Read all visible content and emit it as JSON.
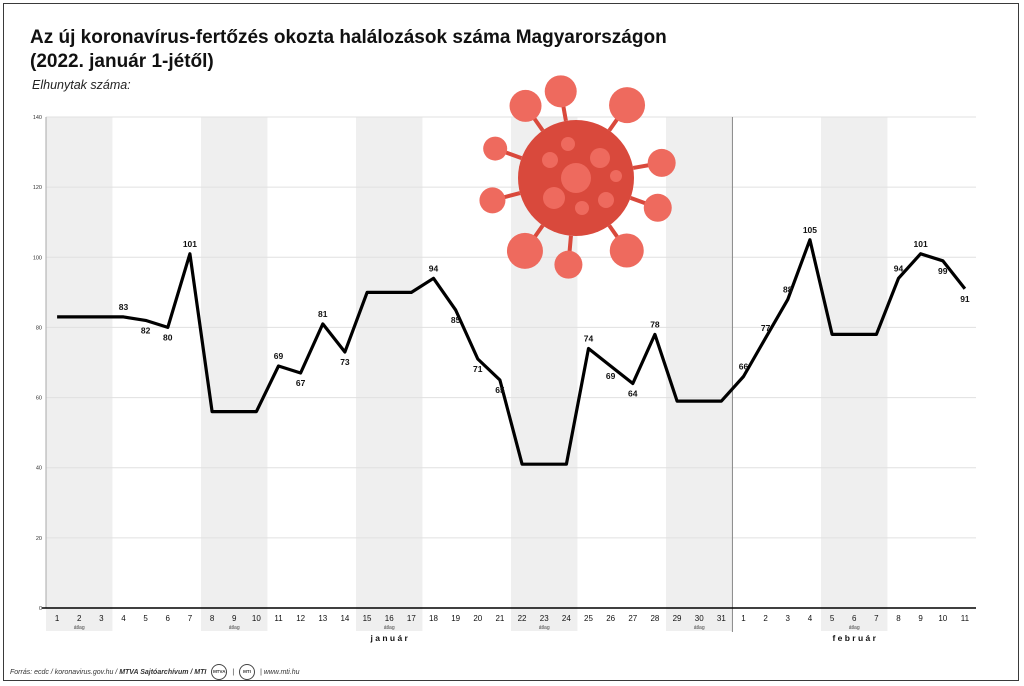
{
  "title_line1": "Az új koronavírus-fertőzés okozta halálozások száma Magyarországon",
  "title_line2": "(2022. január 1-jétől)",
  "ylabel": "Elhunytak száma:",
  "footer": {
    "source": "Forrás: ecdc / koronavirus.gov.hu /",
    "agency": "MTVA Sajtóarchívum / MTI",
    "logo1": "MTVA",
    "logo2": "MTI",
    "url": "www.mti.hu"
  },
  "colors": {
    "line": "#000000",
    "band": "#efefef",
    "grid": "#e0e0e0",
    "virus": "#d9493c",
    "virus_light": "#ee6a5e"
  },
  "chart_data": {
    "type": "line",
    "ylim": [
      0,
      140
    ],
    "yticks": [
      0,
      20,
      40,
      60,
      80,
      100,
      120,
      140
    ],
    "x": [
      "1",
      "2",
      "3",
      "4",
      "5",
      "6",
      "7",
      "8",
      "9",
      "10",
      "11",
      "12",
      "13",
      "14",
      "15",
      "16",
      "17",
      "18",
      "19",
      "20",
      "21",
      "22",
      "23",
      "24",
      "25",
      "26",
      "27",
      "28",
      "29",
      "30",
      "31",
      "1",
      "2",
      "3",
      "4",
      "5",
      "6",
      "7",
      "8",
      "9",
      "10",
      "11"
    ],
    "series": [
      {
        "values": [
          83,
          83,
          83,
          83,
          82,
          80,
          101,
          56,
          56,
          56,
          69,
          67,
          81,
          73,
          90,
          90,
          90,
          94,
          85,
          71,
          65,
          41,
          41,
          41,
          74,
          69,
          64,
          78,
          59,
          59,
          59,
          66,
          77,
          88,
          105,
          78,
          78,
          78,
          94,
          101,
          99,
          91
        ]
      }
    ],
    "data_labels": [
      {
        "i": 3,
        "text": "83"
      },
      {
        "i": 4,
        "text": "82"
      },
      {
        "i": 5,
        "text": "80"
      },
      {
        "i": 6,
        "text": "101"
      },
      {
        "i": 10,
        "text": "69"
      },
      {
        "i": 11,
        "text": "67"
      },
      {
        "i": 12,
        "text": "81"
      },
      {
        "i": 13,
        "text": "73"
      },
      {
        "i": 17,
        "text": "94"
      },
      {
        "i": 18,
        "text": "85"
      },
      {
        "i": 19,
        "text": "71"
      },
      {
        "i": 20,
        "text": "65"
      },
      {
        "i": 24,
        "text": "74"
      },
      {
        "i": 25,
        "text": "69"
      },
      {
        "i": 26,
        "text": "64"
      },
      {
        "i": 27,
        "text": "78"
      },
      {
        "i": 31,
        "text": "66"
      },
      {
        "i": 32,
        "text": "77"
      },
      {
        "i": 33,
        "text": "88"
      },
      {
        "i": 34,
        "text": "105"
      },
      {
        "i": 38,
        "text": "94"
      },
      {
        "i": 39,
        "text": "101"
      },
      {
        "i": 40,
        "text": "99"
      },
      {
        "i": 41,
        "text": "91"
      }
    ],
    "average_bands": [
      {
        "start": 0,
        "end": 2,
        "label": "átlag"
      },
      {
        "start": 7,
        "end": 9,
        "label": "átlag"
      },
      {
        "start": 14,
        "end": 16,
        "label": "átlag"
      },
      {
        "start": 21,
        "end": 23,
        "label": "átlag"
      },
      {
        "start": 28,
        "end": 30,
        "label": "átlag"
      },
      {
        "start": 35,
        "end": 37,
        "label": "átlag"
      }
    ],
    "months": [
      {
        "start": 0,
        "end": 30,
        "label": "j a n u á r"
      },
      {
        "start": 31,
        "end": 41,
        "label": "f e b r u á r"
      }
    ],
    "grid": true
  }
}
